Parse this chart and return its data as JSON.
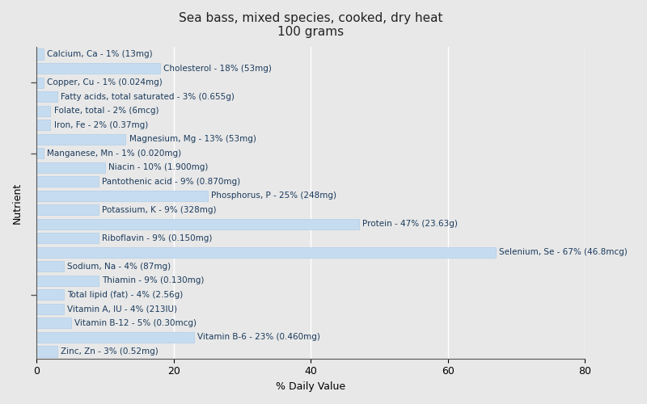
{
  "title": "Sea bass, mixed species, cooked, dry heat",
  "subtitle": "100 grams",
  "xlabel": "% Daily Value",
  "ylabel": "Nutrient",
  "xlim": [
    0,
    80
  ],
  "xticks": [
    0,
    20,
    40,
    60,
    80
  ],
  "background_color": "#e8e8e8",
  "plot_bg_color": "#f0f0f0",
  "bar_color": "#c5dcf0",
  "bar_edge_color": "#a8c8e8",
  "text_color": "#1a3a5c",
  "nutrients": [
    {
      "label": "Calcium, Ca - 1% (13mg)",
      "value": 1
    },
    {
      "label": "Cholesterol - 18% (53mg)",
      "value": 18
    },
    {
      "label": "Copper, Cu - 1% (0.024mg)",
      "value": 1
    },
    {
      "label": "Fatty acids, total saturated - 3% (0.655g)",
      "value": 3
    },
    {
      "label": "Folate, total - 2% (6mcg)",
      "value": 2
    },
    {
      "label": "Iron, Fe - 2% (0.37mg)",
      "value": 2
    },
    {
      "label": "Magnesium, Mg - 13% (53mg)",
      "value": 13
    },
    {
      "label": "Manganese, Mn - 1% (0.020mg)",
      "value": 1
    },
    {
      "label": "Niacin - 10% (1.900mg)",
      "value": 10
    },
    {
      "label": "Pantothenic acid - 9% (0.870mg)",
      "value": 9
    },
    {
      "label": "Phosphorus, P - 25% (248mg)",
      "value": 25
    },
    {
      "label": "Potassium, K - 9% (328mg)",
      "value": 9
    },
    {
      "label": "Protein - 47% (23.63g)",
      "value": 47
    },
    {
      "label": "Riboflavin - 9% (0.150mg)",
      "value": 9
    },
    {
      "label": "Selenium, Se - 67% (46.8mcg)",
      "value": 67
    },
    {
      "label": "Sodium, Na - 4% (87mg)",
      "value": 4
    },
    {
      "label": "Thiamin - 9% (0.130mg)",
      "value": 9
    },
    {
      "label": "Total lipid (fat) - 4% (2.56g)",
      "value": 4
    },
    {
      "label": "Vitamin A, IU - 4% (213IU)",
      "value": 4
    },
    {
      "label": "Vitamin B-12 - 5% (0.30mcg)",
      "value": 5
    },
    {
      "label": "Vitamin B-6 - 23% (0.460mg)",
      "value": 23
    },
    {
      "label": "Zinc, Zn - 3% (0.52mg)",
      "value": 3
    }
  ],
  "title_fontsize": 11,
  "label_fontsize": 7.5,
  "axis_label_fontsize": 9,
  "tick_fontsize": 9,
  "bar_height": 0.75,
  "figsize": [
    8.0,
    5.0
  ],
  "dpi": 100
}
